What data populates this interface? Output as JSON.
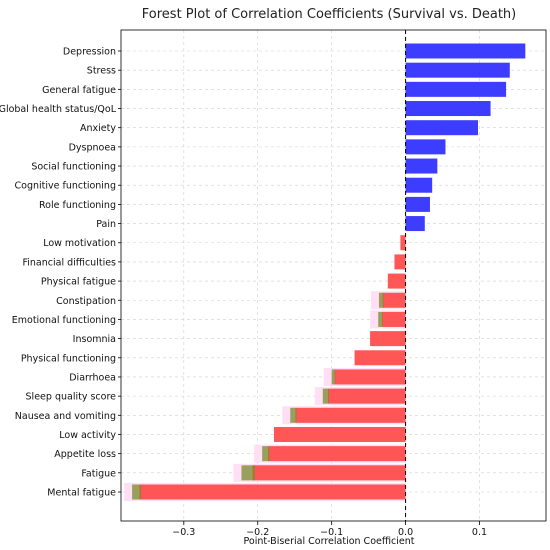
{
  "chart_data": {
    "type": "bar",
    "orientation": "horizontal",
    "title": "Forest Plot of Correlation Coefficients (Survival vs. Death)",
    "xlabel": "Point-Biserial Correlation Coefficient",
    "ylabel": "",
    "xlim": [
      -0.385,
      0.19
    ],
    "xticks": [
      -0.3,
      -0.2,
      -0.1,
      0.0,
      0.1
    ],
    "xtick_labels": [
      "−0.3",
      "−0.2",
      "−0.1",
      "0.0",
      "0.1"
    ],
    "grid": true,
    "reference_line": {
      "x": 0.0,
      "style": "dashed",
      "color": "#000000"
    },
    "colors": {
      "positive": "#3333ff",
      "negative": "#ff4d4d",
      "error_band": "#ffd9f2",
      "error_bar": "#7a8a2a"
    },
    "categories": [
      "Depression",
      "Stress",
      "General fatigue",
      "Global health status/QoL",
      "Anxiety",
      "Dyspnoea",
      "Social functioning",
      "Cognitive functioning",
      "Role functioning",
      "Pain",
      "Low motivation",
      "Financial difficulties",
      "Physical fatigue",
      "Constipation",
      "Emotional functioning",
      "Insomnia",
      "Physical functioning",
      "Diarrhoea",
      "Sleep quality score",
      "Nausea and vomiting",
      "Low activity",
      "Appetite loss",
      "Fatigue",
      "Mental fatigue"
    ],
    "values": [
      0.162,
      0.141,
      0.136,
      0.115,
      0.098,
      0.054,
      0.043,
      0.036,
      0.033,
      0.026,
      -0.007,
      -0.015,
      -0.024,
      -0.031,
      -0.032,
      -0.048,
      -0.069,
      -0.096,
      -0.105,
      -0.149,
      -0.178,
      -0.186,
      -0.207,
      -0.36
    ],
    "error_low": [
      null,
      null,
      null,
      null,
      null,
      null,
      null,
      null,
      null,
      null,
      null,
      null,
      null,
      -0.036,
      -0.037,
      null,
      null,
      -0.1,
      -0.112,
      -0.156,
      null,
      -0.194,
      -0.222,
      -0.37
    ]
  }
}
